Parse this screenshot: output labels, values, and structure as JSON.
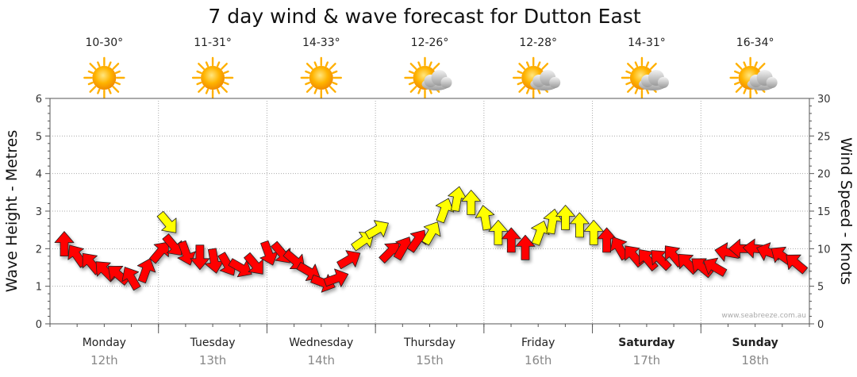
{
  "chart_data": {
    "type": "line",
    "title": "7 day wind & wave forecast for Dutton East",
    "left_axis_label": "Wave Height - Metres",
    "right_axis_label": "Wind Speed - Knots",
    "left_ylim": [
      0,
      6
    ],
    "right_ylim": [
      0,
      30
    ],
    "left_ticks": [
      "0",
      "1",
      "2",
      "3",
      "4",
      "5",
      "6"
    ],
    "right_ticks": [
      "0",
      "5",
      "10",
      "15",
      "20",
      "25",
      "30"
    ],
    "grid": true,
    "credit": "www.seabreeze.com.au",
    "days": [
      {
        "name": "Monday",
        "date": "12th",
        "temp": "10-30°",
        "weather": "sunny",
        "bold": false
      },
      {
        "name": "Tuesday",
        "date": "13th",
        "temp": "11-31°",
        "weather": "sunny",
        "bold": false
      },
      {
        "name": "Wednesday",
        "date": "14th",
        "temp": "14-33°",
        "weather": "sunny",
        "bold": false
      },
      {
        "name": "Thursday",
        "date": "15th",
        "temp": "12-26°",
        "weather": "partly-cloudy",
        "bold": false
      },
      {
        "name": "Friday",
        "date": "16th",
        "temp": "12-28°",
        "weather": "partly-cloudy",
        "bold": false
      },
      {
        "name": "Saturday",
        "date": "17th",
        "temp": "14-31°",
        "weather": "partly-cloudy",
        "bold": true
      },
      {
        "name": "Sunday",
        "date": "18th",
        "temp": "16-34°",
        "weather": "partly-cloudy",
        "bold": true
      }
    ],
    "series": [
      {
        "unit": "knots",
        "colors": {
          "red": "#ff0000",
          "yellow": "#ffff00",
          "outline": "#222222"
        },
        "points": [
          {
            "day": 0.0,
            "kn": 10.5,
            "dir": 180,
            "c": "red"
          },
          {
            "day": 0.12,
            "kn": 9.0,
            "dir": 145,
            "c": "red"
          },
          {
            "day": 0.25,
            "kn": 8.0,
            "dir": 140,
            "c": "red"
          },
          {
            "day": 0.38,
            "kn": 7.0,
            "dir": 135,
            "c": "red"
          },
          {
            "day": 0.5,
            "kn": 6.5,
            "dir": 130,
            "c": "red"
          },
          {
            "day": 0.62,
            "kn": 6.0,
            "dir": 150,
            "c": "red"
          },
          {
            "day": 0.75,
            "kn": 7.0,
            "dir": 200,
            "c": "red"
          },
          {
            "day": 0.88,
            "kn": 9.5,
            "dir": 220,
            "c": "red"
          },
          {
            "day": 0.95,
            "kn": 13.5,
            "dir": 320,
            "c": "yellow"
          },
          {
            "day": 1.0,
            "kn": 10.5,
            "dir": 320,
            "c": "red"
          },
          {
            "day": 1.12,
            "kn": 9.5,
            "dir": 340,
            "c": "red"
          },
          {
            "day": 1.25,
            "kn": 9.0,
            "dir": 0,
            "c": "red"
          },
          {
            "day": 1.38,
            "kn": 8.5,
            "dir": 350,
            "c": "red"
          },
          {
            "day": 1.5,
            "kn": 8.0,
            "dir": 330,
            "c": "red"
          },
          {
            "day": 1.62,
            "kn": 7.5,
            "dir": 300,
            "c": "red"
          },
          {
            "day": 1.75,
            "kn": 8.0,
            "dir": 320,
            "c": "red"
          },
          {
            "day": 1.88,
            "kn": 9.5,
            "dir": 340,
            "c": "red"
          },
          {
            "day": 2.0,
            "kn": 9.5,
            "dir": 320,
            "c": "red"
          },
          {
            "day": 2.12,
            "kn": 8.5,
            "dir": 310,
            "c": "red"
          },
          {
            "day": 2.25,
            "kn": 7.0,
            "dir": 300,
            "c": "red"
          },
          {
            "day": 2.38,
            "kn": 5.5,
            "dir": 290,
            "c": "red"
          },
          {
            "day": 2.5,
            "kn": 6.0,
            "dir": 250,
            "c": "red"
          },
          {
            "day": 2.62,
            "kn": 8.5,
            "dir": 240,
            "c": "red"
          },
          {
            "day": 2.75,
            "kn": 11.0,
            "dir": 235,
            "c": "yellow"
          },
          {
            "day": 2.88,
            "kn": 12.5,
            "dir": 240,
            "c": "yellow"
          },
          {
            "day": 3.0,
            "kn": 9.5,
            "dir": 225,
            "c": "red"
          },
          {
            "day": 3.12,
            "kn": 10.0,
            "dir": 210,
            "c": "red"
          },
          {
            "day": 3.25,
            "kn": 11.0,
            "dir": 215,
            "c": "red"
          },
          {
            "day": 3.38,
            "kn": 12.0,
            "dir": 210,
            "c": "yellow"
          },
          {
            "day": 3.5,
            "kn": 15.0,
            "dir": 200,
            "c": "yellow"
          },
          {
            "day": 3.62,
            "kn": 16.5,
            "dir": 190,
            "c": "yellow"
          },
          {
            "day": 3.75,
            "kn": 16.0,
            "dir": 180,
            "c": "yellow"
          },
          {
            "day": 3.88,
            "kn": 14.0,
            "dir": 170,
            "c": "yellow"
          },
          {
            "day": 4.0,
            "kn": 12.0,
            "dir": 180,
            "c": "yellow"
          },
          {
            "day": 4.12,
            "kn": 11.0,
            "dir": 180,
            "c": "red"
          },
          {
            "day": 4.25,
            "kn": 10.0,
            "dir": 180,
            "c": "red"
          },
          {
            "day": 4.38,
            "kn": 12.0,
            "dir": 200,
            "c": "yellow"
          },
          {
            "day": 4.5,
            "kn": 13.5,
            "dir": 190,
            "c": "yellow"
          },
          {
            "day": 4.62,
            "kn": 14.0,
            "dir": 180,
            "c": "yellow"
          },
          {
            "day": 4.75,
            "kn": 13.0,
            "dir": 180,
            "c": "yellow"
          },
          {
            "day": 4.88,
            "kn": 12.0,
            "dir": 180,
            "c": "yellow"
          },
          {
            "day": 5.0,
            "kn": 11.0,
            "dir": 180,
            "c": "red"
          },
          {
            "day": 5.12,
            "kn": 10.0,
            "dir": 150,
            "c": "red"
          },
          {
            "day": 5.25,
            "kn": 9.0,
            "dir": 140,
            "c": "red"
          },
          {
            "day": 5.38,
            "kn": 8.5,
            "dir": 140,
            "c": "red"
          },
          {
            "day": 5.5,
            "kn": 8.5,
            "dir": 135,
            "c": "red"
          },
          {
            "day": 5.62,
            "kn": 9.0,
            "dir": 140,
            "c": "red"
          },
          {
            "day": 5.75,
            "kn": 8.0,
            "dir": 135,
            "c": "red"
          },
          {
            "day": 5.88,
            "kn": 7.5,
            "dir": 130,
            "c": "red"
          },
          {
            "day": 6.0,
            "kn": 7.5,
            "dir": 120,
            "c": "red"
          },
          {
            "day": 6.12,
            "kn": 9.5,
            "dir": 100,
            "c": "red"
          },
          {
            "day": 6.25,
            "kn": 10.0,
            "dir": 90,
            "c": "red"
          },
          {
            "day": 6.38,
            "kn": 10.0,
            "dir": 95,
            "c": "red"
          },
          {
            "day": 6.5,
            "kn": 9.5,
            "dir": 110,
            "c": "red"
          },
          {
            "day": 6.62,
            "kn": 9.0,
            "dir": 125,
            "c": "red"
          },
          {
            "day": 6.75,
            "kn": 8.0,
            "dir": 130,
            "c": "red"
          }
        ]
      }
    ]
  }
}
